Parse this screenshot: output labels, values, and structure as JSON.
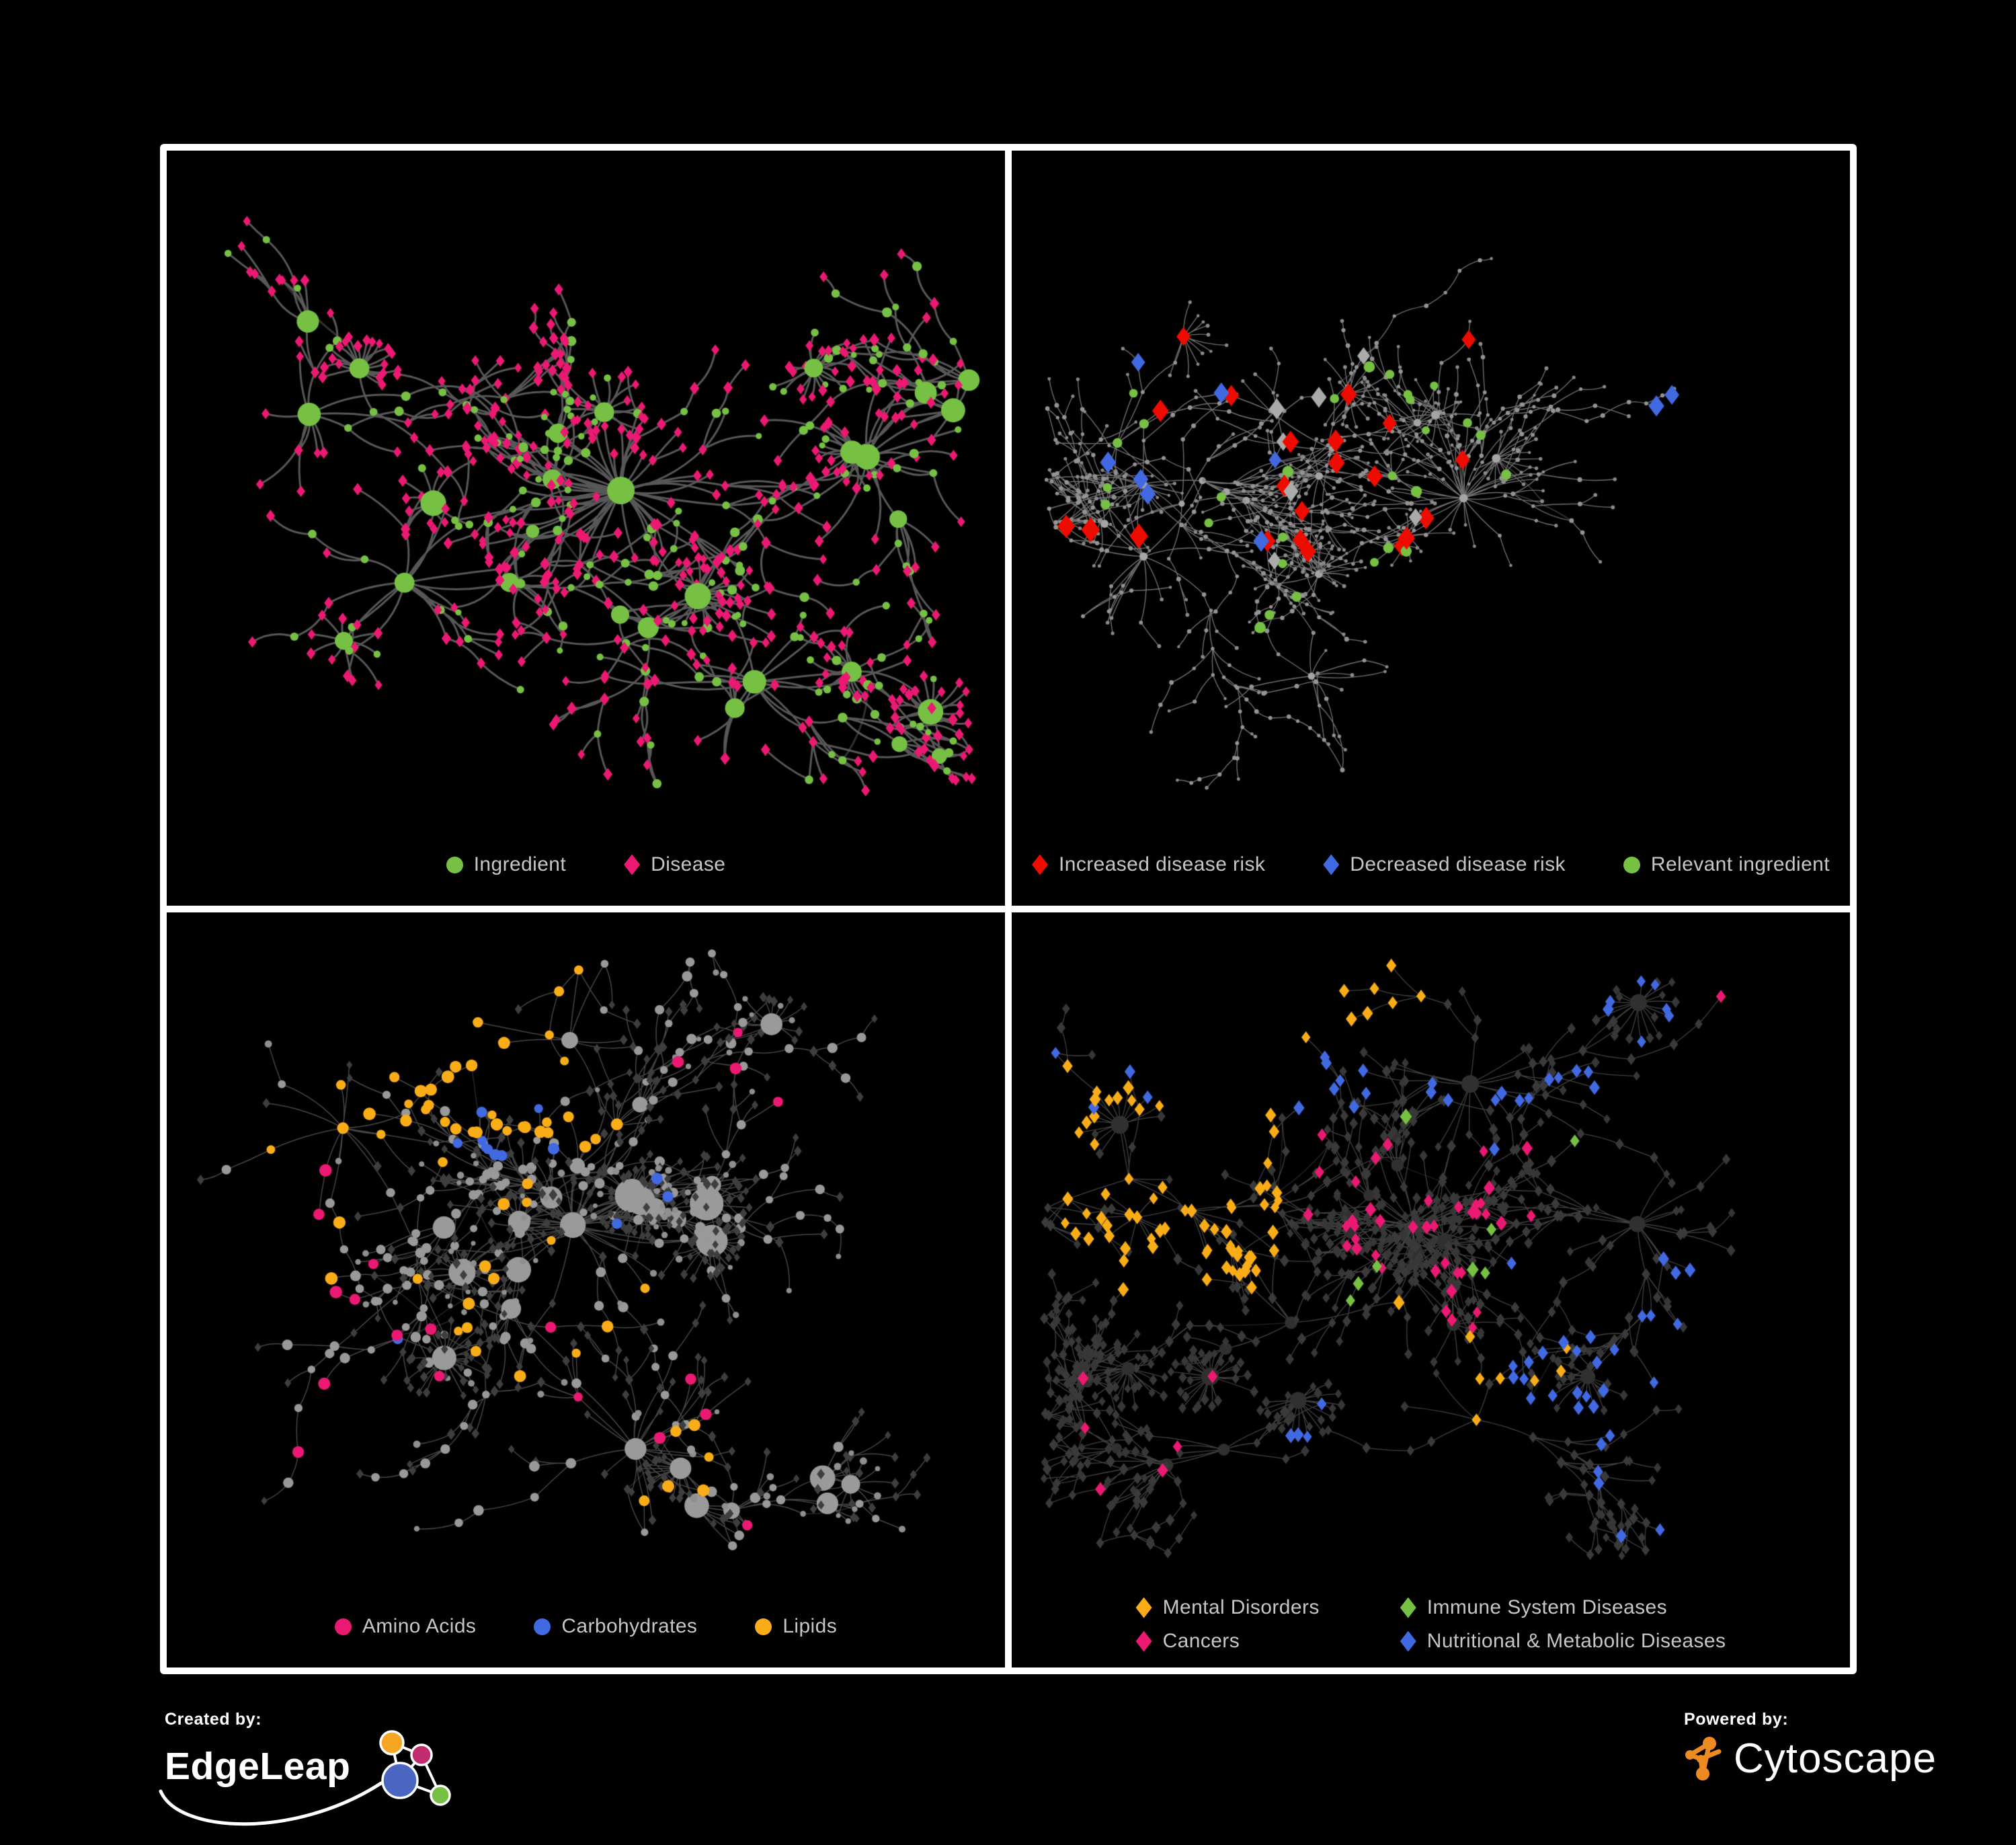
{
  "page": {
    "background": "#000000",
    "frame_color": "#ffffff"
  },
  "footer": {
    "created_by": "Created by:",
    "brand": "EdgeLeap",
    "powered_by": "Powered by:",
    "engine": "Cytoscape",
    "colors": {
      "edgeleap_orange": "#F5A623",
      "edgeleap_magenta": "#C22B6E",
      "edgeleap_blue": "#4A66C0",
      "edgeleap_green": "#76C043",
      "cytoscape_orange": "#EE8A22"
    }
  },
  "panels": [
    {
      "id": "ingredient-disease",
      "legend_columns": 1,
      "legend": [
        {
          "label": "Ingredient",
          "shape": "circle",
          "color": "#76C043"
        },
        {
          "label": "Disease",
          "shape": "diamond",
          "color": "#EC1973"
        }
      ],
      "net": {
        "seed": 7,
        "nodes": 560,
        "roots": 6,
        "step": 64,
        "spread": 2.5,
        "chain": 0.25,
        "wiggle": 1.7,
        "fans": 9,
        "fanMin": 8,
        "fanMax": 20,
        "hubDeg": 5,
        "hubGrow": 0.05,
        "curve": 0.5,
        "extra": 40,
        "extraDist": 150,
        "edge": {
          "color": "#666666",
          "width": 3,
          "alpha": 0.85
        },
        "roles": {
          "hub": [
            {
              "w": 1,
              "shape": "circle",
              "color": "#76C043",
              "r": [
                8,
                13
              ]
            }
          ],
          "mid": [
            {
              "w": 0.45,
              "shape": "circle",
              "color": "#76C043",
              "r": [
                5,
                7.5
              ]
            },
            {
              "w": 0.55,
              "shape": "diamond",
              "color": "#EC1973",
              "r": [
                6,
                7.5
              ]
            }
          ],
          "leaf": [
            {
              "w": 0.14,
              "shape": "circle",
              "color": "#76C043",
              "r": [
                4.5,
                6
              ]
            },
            {
              "w": 0.86,
              "shape": "diamond",
              "color": "#EC1973",
              "r": [
                5.5,
                7
              ]
            }
          ]
        },
        "highlights": []
      }
    },
    {
      "id": "disease-risk",
      "legend_columns": 1,
      "legend": [
        {
          "label": "Increased disease risk",
          "shape": "diamond",
          "color": "#EE0B00"
        },
        {
          "label": "Decreased disease risk",
          "shape": "diamond",
          "color": "#4169E1"
        },
        {
          "label": "Relevant ingredient",
          "shape": "circle",
          "color": "#76C043"
        }
      ],
      "net": {
        "seed": 19,
        "nodes": 760,
        "roots": 7,
        "step": 46,
        "spread": 2.2,
        "chain": 0.45,
        "wiggle": 1.5,
        "fans": 12,
        "fanMin": 7,
        "fanMax": 18,
        "hubDeg": 6,
        "hubGrow": 0.03,
        "curve": 0.25,
        "extra": 90,
        "extraDist": 120,
        "edge": {
          "color": "#8B8B8B",
          "width": 1.4,
          "alpha": 0.8
        },
        "roles": {
          "hub": [
            {
              "w": 1,
              "shape": "circle",
              "color": "#A5A5A5",
              "r": [
                3.5,
                5
              ]
            }
          ],
          "mid": [
            {
              "w": 1,
              "shape": "circle",
              "color": "#949494",
              "r": [
                2.6,
                3.6
              ]
            }
          ],
          "leaf": [
            {
              "w": 1,
              "shape": "circle",
              "color": "#8A8A8A",
              "r": [
                2.2,
                3
              ]
            }
          ]
        },
        "highlights": [
          {
            "shape": "diamond",
            "color": "#EE0B00",
            "r": [
              10,
              14
            ],
            "count": 22,
            "region": [
              0.06,
              0.2,
              0.6,
              0.6
            ]
          },
          {
            "shape": "diamond",
            "color": "#EE0B00",
            "r": [
              10,
              13
            ],
            "count": 3,
            "region": [
              0.52,
              0.72,
              0.68,
              0.88
            ]
          },
          {
            "shape": "diamond",
            "color": "#EE0B00",
            "r": [
              10,
              13
            ],
            "count": 2,
            "region": [
              0.86,
              0.24,
              0.98,
              0.36
            ]
          },
          {
            "shape": "diamond",
            "color": "#ABABAB",
            "r": [
              9,
              12
            ],
            "count": 7,
            "region": [
              0.06,
              0.22,
              0.55,
              0.62
            ]
          },
          {
            "shape": "diamond",
            "color": "#4169E1",
            "r": [
              9,
              12
            ],
            "count": 7,
            "region": [
              0.07,
              0.26,
              0.33,
              0.58
            ]
          },
          {
            "shape": "diamond",
            "color": "#4169E1",
            "r": [
              10,
              12
            ],
            "count": 2,
            "region": [
              0.76,
              0.3,
              0.88,
              0.4
            ]
          },
          {
            "shape": "circle",
            "color": "#76C043",
            "r": [
              6,
              8.5
            ],
            "count": 24,
            "region": [
              0.05,
              0.18,
              0.62,
              0.62
            ]
          },
          {
            "shape": "circle",
            "color": "#76C043",
            "r": [
              6,
              8.5
            ],
            "count": 4,
            "region": [
              0.28,
              0.6,
              0.6,
              0.8
            ]
          }
        ]
      }
    },
    {
      "id": "nutrient-classes",
      "legend_columns": 1,
      "legend": [
        {
          "label": "Amino Acids",
          "shape": "circle",
          "color": "#EC1973"
        },
        {
          "label": "Carbohydrates",
          "shape": "circle",
          "color": "#4169E1"
        },
        {
          "label": "Lipids",
          "shape": "circle",
          "color": "#FBAD18"
        }
      ],
      "net": {
        "seed": 5,
        "nodes": 640,
        "roots": 6,
        "step": 58,
        "spread": 2.4,
        "chain": 0.3,
        "wiggle": 1.7,
        "fans": 10,
        "fanMin": 9,
        "fanMax": 30,
        "hubDeg": 5,
        "hubGrow": 0.06,
        "curve": 0.3,
        "extra": 160,
        "extraDist": 150,
        "edge": {
          "color": "#9C9C9C",
          "width": 1.5,
          "alpha": 0.45
        },
        "roles": {
          "hub": [
            {
              "w": 1,
              "shape": "circle",
              "color": "#9A9A9A",
              "r": [
                8,
                14
              ]
            }
          ],
          "mid": [
            {
              "w": 0.75,
              "shape": "circle",
              "color": "#999999",
              "r": [
                5.5,
                8
              ]
            },
            {
              "w": 0.25,
              "shape": "diamond",
              "color": "#3E3E3E",
              "r": [
                5,
                6.5
              ]
            }
          ],
          "leaf": [
            {
              "w": 0.8,
              "shape": "diamond",
              "color": "#3E3E3E",
              "r": [
                4.5,
                6
              ]
            },
            {
              "w": 0.2,
              "shape": "circle",
              "color": "#8F8F8F",
              "r": [
                3.5,
                5.5
              ]
            }
          ]
        },
        "highlights": [
          {
            "shape": "circle",
            "color": "#FBAD18",
            "r": [
              6.5,
              9.5
            ],
            "count": 32,
            "region": [
              0.2,
              0.1,
              0.48,
              0.33
            ]
          },
          {
            "shape": "circle",
            "color": "#FBAD18",
            "r": [
              6.5,
              9.5
            ],
            "count": 16,
            "region": [
              0.08,
              0.3,
              0.55,
              0.62
            ]
          },
          {
            "shape": "circle",
            "color": "#FBAD18",
            "r": [
              6.5,
              9.5
            ],
            "count": 12,
            "region": [
              0.35,
              0.55,
              0.85,
              0.88
            ]
          },
          {
            "shape": "circle",
            "color": "#FBAD18",
            "r": [
              6.5,
              9
            ],
            "count": 5,
            "region": [
              0.12,
              0.0,
              0.5,
              0.1
            ]
          },
          {
            "shape": "circle",
            "color": "#4169E1",
            "r": [
              6.5,
              9
            ],
            "count": 9,
            "region": [
              0.26,
              0.12,
              0.48,
              0.36
            ]
          },
          {
            "shape": "circle",
            "color": "#4169E1",
            "r": [
              6.5,
              9
            ],
            "count": 4,
            "region": [
              0.1,
              0.35,
              0.75,
              0.78
            ]
          },
          {
            "shape": "circle",
            "color": "#EC1973",
            "r": [
              6.5,
              9.5
            ],
            "count": 8,
            "region": [
              0.03,
              0.35,
              0.28,
              0.88
            ]
          },
          {
            "shape": "circle",
            "color": "#EC1973",
            "r": [
              6.5,
              9.5
            ],
            "count": 8,
            "region": [
              0.28,
              0.6,
              0.8,
              0.97
            ]
          },
          {
            "shape": "circle",
            "color": "#EC1973",
            "r": [
              6.5,
              9
            ],
            "count": 4,
            "region": [
              0.55,
              0.03,
              0.97,
              0.32
            ]
          },
          {
            "shape": "circle",
            "color": "#EC1973",
            "r": [
              6.5,
              9
            ],
            "count": 1,
            "region": [
              0.3,
              0.0,
              0.45,
              0.08
            ]
          }
        ]
      }
    },
    {
      "id": "disease-classes",
      "legend_columns": 2,
      "legend": [
        {
          "label": "Mental Disorders",
          "shape": "diamond",
          "color": "#FBAD18"
        },
        {
          "label": "Immune System Diseases",
          "shape": "diamond",
          "color": "#76C043"
        },
        {
          "label": "Cancers",
          "shape": "diamond",
          "color": "#EC1973"
        },
        {
          "label": "Nutritional & Metabolic Diseases",
          "shape": "diamond",
          "color": "#4169E1"
        }
      ],
      "net": {
        "seed": 91,
        "nodes": 820,
        "roots": 7,
        "step": 50,
        "spread": 2.3,
        "chain": 0.35,
        "wiggle": 1.6,
        "fans": 12,
        "fanMin": 8,
        "fanMax": 26,
        "hubDeg": 6,
        "hubGrow": 0.04,
        "curve": 0.2,
        "extra": 150,
        "extraDist": 130,
        "edge": {
          "color": "#909090",
          "width": 1.3,
          "alpha": 0.45
        },
        "roles": {
          "hub": [
            {
              "w": 1,
              "shape": "circle",
              "color": "#303030",
              "r": [
                6,
                9
              ]
            }
          ],
          "mid": [
            {
              "w": 1,
              "shape": "diamond",
              "color": "#3A3A3A",
              "r": [
                5.5,
                7
              ]
            }
          ],
          "leaf": [
            {
              "w": 1,
              "shape": "diamond",
              "color": "#373737",
              "r": [
                5,
                6.5
              ]
            }
          ]
        },
        "highlights": [
          {
            "shape": "diamond",
            "color": "#FBAD18",
            "r": [
              6.5,
              8.5
            ],
            "count": 70,
            "region": [
              0.06,
              0.22,
              0.32,
              0.56
            ]
          },
          {
            "shape": "diamond",
            "color": "#FBAD18",
            "r": [
              6.5,
              8.5
            ],
            "count": 10,
            "region": [
              0.1,
              0.02,
              0.5,
              0.2
            ]
          },
          {
            "shape": "diamond",
            "color": "#FBAD18",
            "r": [
              6.5,
              8.5
            ],
            "count": 8,
            "region": [
              0.3,
              0.56,
              0.68,
              0.92
            ]
          },
          {
            "shape": "diamond",
            "color": "#EC1973",
            "r": [
              6.5,
              8.5
            ],
            "count": 40,
            "region": [
              0.32,
              0.32,
              0.64,
              0.64
            ]
          },
          {
            "shape": "diamond",
            "color": "#EC1973",
            "r": [
              6.5,
              8.5
            ],
            "count": 5,
            "region": [
              0.84,
              0.1,
              0.99,
              0.24
            ]
          },
          {
            "shape": "diamond",
            "color": "#EC1973",
            "r": [
              6.5,
              8.5
            ],
            "count": 6,
            "region": [
              0.08,
              0.6,
              0.36,
              0.92
            ]
          },
          {
            "shape": "diamond",
            "color": "#4169E1",
            "r": [
              6.5,
              8.5
            ],
            "count": 25,
            "region": [
              0.56,
              0.5,
              0.86,
              0.78
            ]
          },
          {
            "shape": "diamond",
            "color": "#4169E1",
            "r": [
              6.5,
              8.5
            ],
            "count": 20,
            "region": [
              0.5,
              0.02,
              0.98,
              0.36
            ]
          },
          {
            "shape": "diamond",
            "color": "#4169E1",
            "r": [
              6.5,
              8.5
            ],
            "count": 12,
            "region": [
              0.04,
              0.02,
              0.45,
              0.3
            ]
          },
          {
            "shape": "diamond",
            "color": "#4169E1",
            "r": [
              6.5,
              8.5
            ],
            "count": 10,
            "region": [
              0.3,
              0.7,
              0.85,
              0.97
            ]
          },
          {
            "shape": "diamond",
            "color": "#76C043",
            "r": [
              7,
              9
            ],
            "count": 8,
            "region": [
              0.28,
              0.2,
              0.72,
              0.62
            ]
          }
        ]
      }
    }
  ]
}
